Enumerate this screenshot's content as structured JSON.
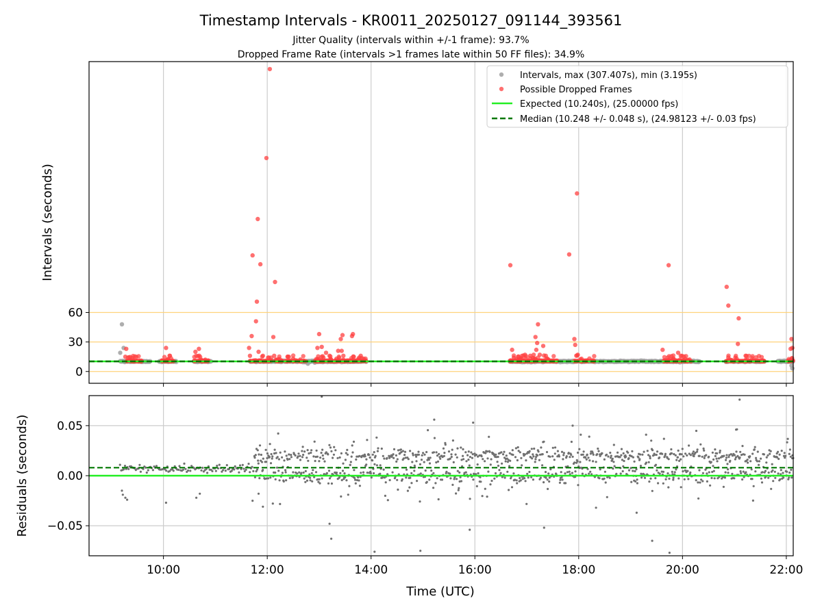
{
  "figure": {
    "title": "Timestamp Intervals - KR0011_20250127_091144_393561",
    "subtitle_1": "Jitter Quality (intervals within +/-1 frame): 93.7%",
    "subtitle_2": "Dropped Frame Rate (intervals >1 frames late within 50 FF files): 34.9%"
  },
  "colors": {
    "intervals": "#a0a0a0",
    "dropped": "#ff4040",
    "expected": "#22ee22",
    "median": "#007700",
    "threshold": "#ffd27a",
    "grid": "#cccccc",
    "residual": "#707070"
  },
  "chart_data": [
    {
      "type": "scatter",
      "xlabel": "",
      "ylabel": "Intervals (seconds)",
      "x_ticks": [
        "10:00",
        "12:00",
        "14:00",
        "16:00",
        "18:00",
        "20:00",
        "22:00"
      ],
      "y_ticks": [
        "0",
        "30",
        "60"
      ],
      "xlim": [
        "08:34",
        "22:08"
      ],
      "ylim": [
        -12,
        315
      ],
      "grid": "vertical",
      "legend_position": "top-right",
      "threshold_lines": [
        0,
        30,
        60
      ],
      "expected_interval": 10.24,
      "median_interval": 10.248,
      "legend": {
        "intervals": "Intervals, max (307.407s), min (3.195s)",
        "dropped": "Possible Dropped Frames",
        "expected": "Expected (10.240s), (25.00000 fps)",
        "median": "Median (10.248 +/- 0.048 s), (24.98123 +/- 0.03 fps)"
      },
      "series": [
        {
          "name": "Intervals, max (307.407s), min (3.195s)",
          "segments": [
            [
              "09:10",
              "09:45"
            ],
            [
              "09:55",
              "10:15"
            ],
            [
              "10:35",
              "10:55"
            ],
            [
              "11:40",
              "13:55"
            ],
            [
              "16:40",
              "18:25"
            ],
            [
              "18:25",
              "19:40"
            ],
            [
              "19:40",
              "20:20"
            ],
            [
              "20:50",
              "21:35"
            ],
            [
              "21:50",
              "22:08"
            ]
          ],
          "typical_value": 10.24,
          "points": [
            {
              "x": "09:12",
              "y": 48
            },
            {
              "x": "09:14",
              "y": 24
            },
            {
              "x": "09:10",
              "y": 19
            },
            {
              "x": "12:37",
              "y": 11
            },
            {
              "x": "12:47",
              "y": 8
            },
            {
              "x": "12:55",
              "y": 9
            },
            {
              "x": "22:07",
              "y": 3.2
            },
            {
              "x": "22:06",
              "y": 6
            }
          ]
        },
        {
          "name": "Possible Dropped Frames",
          "points": [
            {
              "x": "09:17",
              "y": 23
            },
            {
              "x": "09:16",
              "y": 15
            },
            {
              "x": "10:03",
              "y": 24
            },
            {
              "x": "10:37",
              "y": 20
            },
            {
              "x": "10:41",
              "y": 23
            },
            {
              "x": "11:39",
              "y": 24
            },
            {
              "x": "11:40",
              "y": 16
            },
            {
              "x": "11:42",
              "y": 36
            },
            {
              "x": "11:43",
              "y": 118
            },
            {
              "x": "11:47",
              "y": 51
            },
            {
              "x": "11:48",
              "y": 71
            },
            {
              "x": "11:49",
              "y": 155
            },
            {
              "x": "11:52",
              "y": 109
            },
            {
              "x": "11:50",
              "y": 20
            },
            {
              "x": "11:55",
              "y": 16
            },
            {
              "x": "11:59",
              "y": 217
            },
            {
              "x": "12:03",
              "y": 307.4
            },
            {
              "x": "12:07",
              "y": 35
            },
            {
              "x": "12:09",
              "y": 91
            },
            {
              "x": "12:08",
              "y": 16
            },
            {
              "x": "12:10",
              "y": 12
            },
            {
              "x": "12:25",
              "y": 15
            },
            {
              "x": "12:30",
              "y": 13
            },
            {
              "x": "12:58",
              "y": 24
            },
            {
              "x": "13:00",
              "y": 38
            },
            {
              "x": "13:03",
              "y": 25
            },
            {
              "x": "13:05",
              "y": 14
            },
            {
              "x": "13:08",
              "y": 19
            },
            {
              "x": "13:12",
              "y": 16
            },
            {
              "x": "13:20",
              "y": 13
            },
            {
              "x": "13:22",
              "y": 21
            },
            {
              "x": "13:25",
              "y": 33
            },
            {
              "x": "13:27",
              "y": 37
            },
            {
              "x": "13:26",
              "y": 21
            },
            {
              "x": "13:28",
              "y": 16
            },
            {
              "x": "13:38",
              "y": 36
            },
            {
              "x": "13:39",
              "y": 38
            },
            {
              "x": "13:40",
              "y": 15
            },
            {
              "x": "13:48",
              "y": 16
            },
            {
              "x": "16:41",
              "y": 108
            },
            {
              "x": "16:43",
              "y": 22
            },
            {
              "x": "16:45",
              "y": 14
            },
            {
              "x": "16:50",
              "y": 15
            },
            {
              "x": "16:58",
              "y": 17
            },
            {
              "x": "17:04",
              "y": 16
            },
            {
              "x": "17:08",
              "y": 17
            },
            {
              "x": "17:10",
              "y": 35
            },
            {
              "x": "17:11",
              "y": 22
            },
            {
              "x": "17:12",
              "y": 29
            },
            {
              "x": "17:13",
              "y": 48
            },
            {
              "x": "17:15",
              "y": 17
            },
            {
              "x": "17:19",
              "y": 26
            },
            {
              "x": "17:22",
              "y": 16
            },
            {
              "x": "17:25",
              "y": 12
            },
            {
              "x": "17:49",
              "y": 119
            },
            {
              "x": "17:55",
              "y": 33
            },
            {
              "x": "17:56",
              "y": 27
            },
            {
              "x": "17:58",
              "y": 181
            },
            {
              "x": "17:59",
              "y": 17
            },
            {
              "x": "19:37",
              "y": 22
            },
            {
              "x": "19:44",
              "y": 108
            },
            {
              "x": "19:55",
              "y": 19
            },
            {
              "x": "19:58",
              "y": 16
            },
            {
              "x": "19:57",
              "y": 12
            },
            {
              "x": "20:51",
              "y": 86
            },
            {
              "x": "20:53",
              "y": 67
            },
            {
              "x": "20:55",
              "y": 12
            },
            {
              "x": "21:05",
              "y": 54
            },
            {
              "x": "21:04",
              "y": 28
            },
            {
              "x": "21:13",
              "y": 16
            },
            {
              "x": "21:15",
              "y": 12
            },
            {
              "x": "21:20",
              "y": 11
            },
            {
              "x": "22:06",
              "y": 33
            },
            {
              "x": "22:05",
              "y": 23
            },
            {
              "x": "22:07",
              "y": 24
            },
            {
              "x": "22:06",
              "y": 13
            }
          ]
        },
        {
          "name": "Expected (10.240s), (25.00000 fps)",
          "value": 10.24
        },
        {
          "name": "Median (10.248 +/- 0.048 s), (24.98123 +/- 0.03 fps)",
          "value": 10.248
        }
      ]
    },
    {
      "type": "scatter",
      "xlabel": "Time (UTC)",
      "ylabel": "Residuals (seconds)",
      "x_ticks": [
        "10:00",
        "12:00",
        "14:00",
        "16:00",
        "18:00",
        "20:00",
        "22:00"
      ],
      "y_ticks": [
        "0.05",
        "0.00",
        "−0.05"
      ],
      "xlim": [
        "08:34",
        "22:08"
      ],
      "ylim": [
        -0.08,
        0.08
      ],
      "grid": "both",
      "expected_residual": 0.0,
      "median_residual": 0.008,
      "series": [
        {
          "name": "",
          "segments": [
            {
              "start": "09:10",
              "end": "11:45",
              "center": 0.007,
              "spread": 0.002
            },
            {
              "start": "11:45",
              "end": "18:25",
              "center": 0.008,
              "spread": 0.015
            },
            {
              "start": "18:25",
              "end": "22:08",
              "center": 0.01,
              "spread": 0.012
            }
          ],
          "points": [
            {
              "x": "09:12",
              "y": -0.015
            },
            {
              "x": "09:13",
              "y": -0.019
            },
            {
              "x": "09:16",
              "y": -0.022
            },
            {
              "x": "09:18",
              "y": -0.024
            },
            {
              "x": "10:03",
              "y": -0.027
            },
            {
              "x": "10:38",
              "y": -0.022
            },
            {
              "x": "10:42",
              "y": -0.018
            },
            {
              "x": "11:43",
              "y": -0.025
            },
            {
              "x": "11:50",
              "y": -0.018
            },
            {
              "x": "11:55",
              "y": -0.031
            },
            {
              "x": "13:03",
              "y": 0.079
            },
            {
              "x": "13:12",
              "y": -0.048
            },
            {
              "x": "13:14",
              "y": -0.063
            },
            {
              "x": "14:04",
              "y": -0.076
            },
            {
              "x": "14:57",
              "y": -0.075
            },
            {
              "x": "15:13",
              "y": 0.056
            },
            {
              "x": "15:58",
              "y": 0.053
            },
            {
              "x": "17:20",
              "y": -0.052
            },
            {
              "x": "17:53",
              "y": 0.05
            },
            {
              "x": "19:07",
              "y": -0.037
            },
            {
              "x": "19:25",
              "y": -0.065
            },
            {
              "x": "19:45",
              "y": -0.077
            },
            {
              "x": "21:06",
              "y": 0.076
            },
            {
              "x": "15:54",
              "y": -0.054
            },
            {
              "x": "18:20",
              "y": -0.032
            },
            {
              "x": "21:02",
              "y": 0.046
            }
          ]
        },
        {
          "name": "expected",
          "value": 0.0
        },
        {
          "name": "median",
          "value": 0.008
        }
      ]
    }
  ]
}
